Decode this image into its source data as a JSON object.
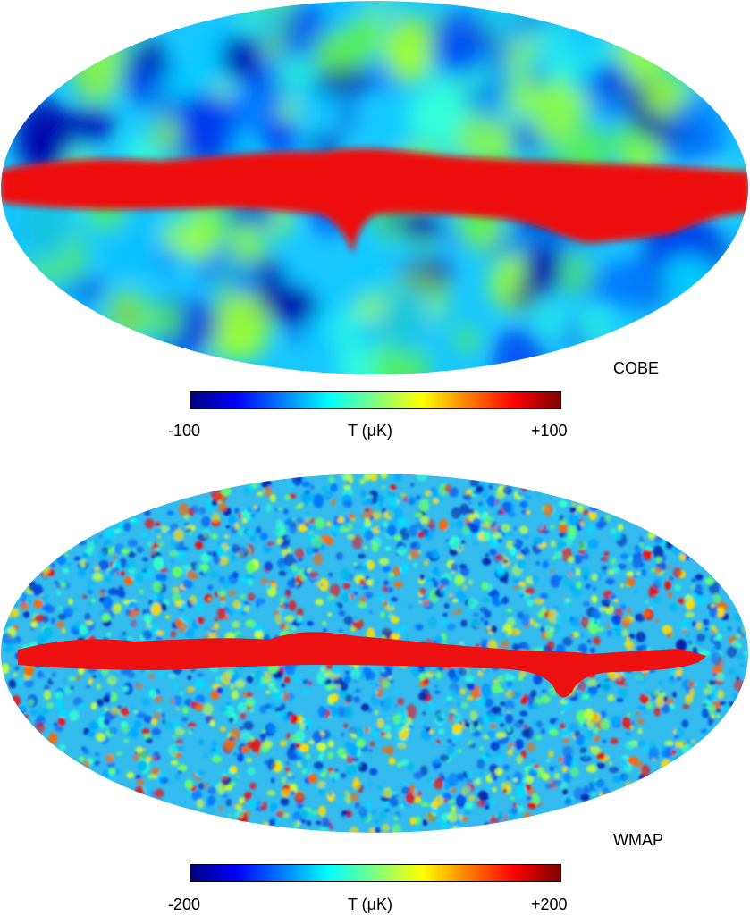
{
  "colorscale": {
    "stops": [
      "#00007f",
      "#0000ff",
      "#007fff",
      "#00ffff",
      "#7fff7f",
      "#ffff00",
      "#ff7f00",
      "#ff0000",
      "#7f0000"
    ]
  },
  "panels": [
    {
      "id": "cobe",
      "label": "COBE",
      "colorbar": {
        "min_label": "-100",
        "center_label": "T (μK)",
        "max_label": "+100"
      }
    },
    {
      "id": "wmap",
      "label": "WMAP",
      "colorbar": {
        "min_label": "-200",
        "center_label": "T (μK)",
        "max_label": "+200"
      }
    }
  ]
}
